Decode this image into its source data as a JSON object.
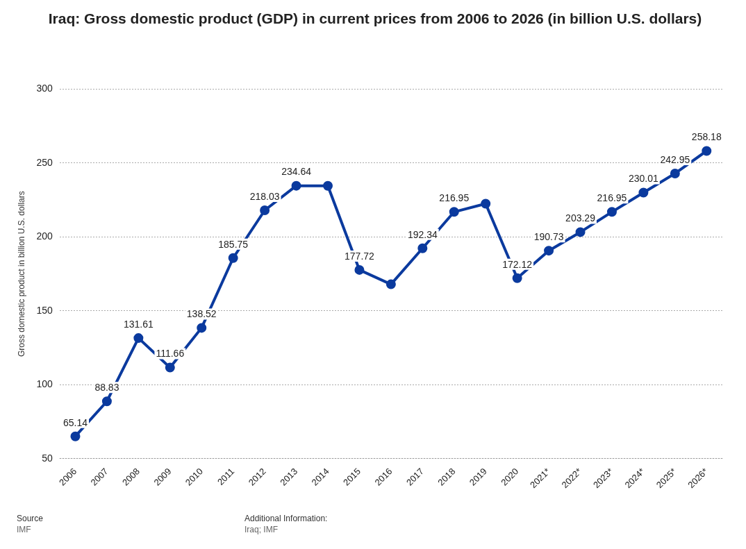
{
  "chart_data": {
    "type": "line",
    "title": "Iraq: Gross domestic product (GDP) in current prices from 2006 to 2026 (in billion U.S. dollars)",
    "ylabel": "Gross domestic product in billion U.S. dollars",
    "categories": [
      "2006",
      "2007",
      "2008",
      "2009",
      "2010",
      "2011",
      "2012",
      "2013",
      "2014",
      "2015",
      "2016",
      "2017",
      "2018",
      "2019",
      "2020",
      "2021*",
      "2022*",
      "2023*",
      "2024*",
      "2025*",
      "2026*"
    ],
    "series": [
      {
        "color": "#0b3a9e",
        "values": [
          65.14,
          88.83,
          131.61,
          111.66,
          138.52,
          185.75,
          218.03,
          234.64,
          234.6,
          177.72,
          168,
          192.34,
          216.95,
          222.5,
          172.12,
          190.73,
          203.29,
          216.95,
          230.01,
          242.95,
          258.18
        ],
        "value_labels": [
          "65.14",
          "88.83",
          "131.61",
          "111.66",
          "138.52",
          "185.75",
          "218.03",
          "234.64",
          null,
          "177.72",
          null,
          "192.34",
          "216.95",
          null,
          "172.12",
          "190.73",
          "203.29",
          "216.95",
          "230.01",
          "242.95",
          "258.18"
        ]
      }
    ],
    "ylim": [
      50,
      300
    ],
    "yticks": [
      50,
      100,
      150,
      200,
      250,
      300
    ],
    "grid": "y",
    "legend": false,
    "marker": "circle",
    "line_style": "solid",
    "annotations": [
      "Source",
      "IMF",
      "Additional Information:",
      "Iraq; IMF"
    ]
  }
}
